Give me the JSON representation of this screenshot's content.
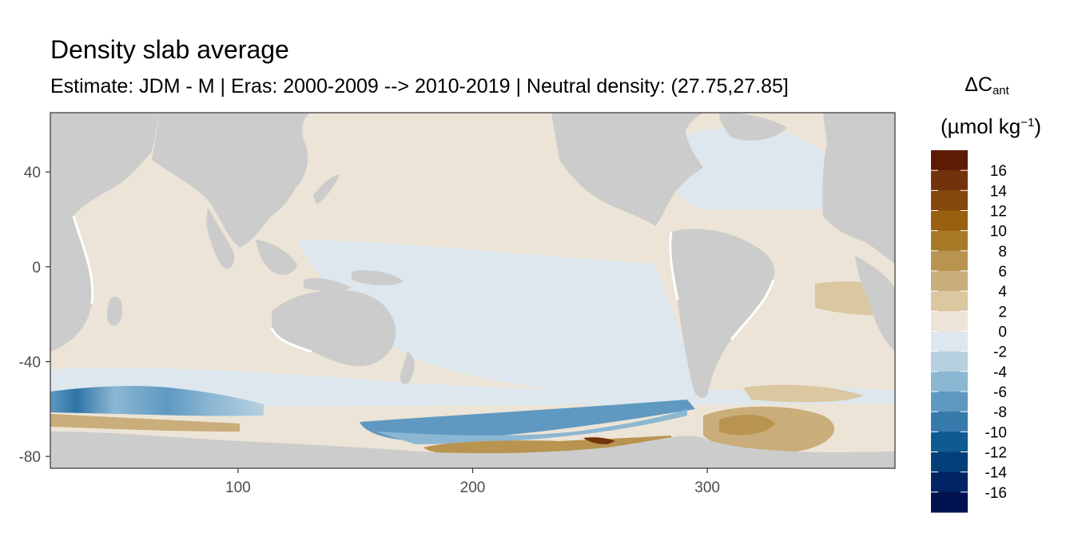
{
  "title": "Density slab average",
  "subtitle": "Estimate: JDM - M | Eras: 2000-2009 --> 2010-2019 | Neutral density: (27.75,27.85]",
  "legend": {
    "title_main": "ΔC",
    "title_sub": "ant",
    "unit_prefix": "(µmol kg",
    "unit_sup": "−1",
    "unit_suffix": ")",
    "labels": [
      "16",
      "14",
      "12",
      "10",
      "8",
      "6",
      "4",
      "2",
      "0",
      "-2",
      "-4",
      "-6",
      "-8",
      "-10",
      "-12",
      "-14",
      "-16"
    ],
    "colors": [
      "#5e1a05",
      "#73330a",
      "#86490d",
      "#98600f",
      "#a87a28",
      "#b89450",
      "#c9ad7a",
      "#dbc7a0",
      "#ece4d6",
      "#dde7ed",
      "#b6d0df",
      "#8cb7d2",
      "#5f99c2",
      "#3679ab",
      "#0f5a93",
      "#053f7a",
      "#012564",
      "#00124f"
    ]
  },
  "chart_data": {
    "type": "heatmap",
    "title": "Density slab average",
    "subtitle": "Estimate: JDM - M | Eras: 2000-2009 --> 2010-2019 | Neutral density: (27.75,27.85]",
    "x_ticks": [
      100,
      200,
      300
    ],
    "y_ticks": [
      40,
      0,
      -40,
      -80
    ],
    "xlim": [
      20,
      380
    ],
    "ylim": [
      -85,
      65
    ],
    "land_color": "#cccccc",
    "colorbar_range": [
      -18,
      18
    ],
    "colorbar_step": 2
  }
}
